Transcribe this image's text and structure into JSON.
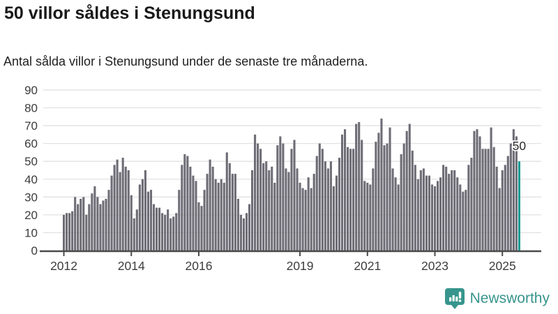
{
  "header": {
    "title": "50 villor såldes i Stenungsund",
    "subtitle": "Antal sålda villor i Stenungsund under de senaste tre månaderna."
  },
  "footer": {
    "brand": "Newsworthy",
    "logo_icon": "newsworthy-speech-bubble-chart-icon"
  },
  "colors": {
    "bar": "#6e6d76",
    "highlight": "#1d9b95",
    "brand_teal": "#37958d",
    "grid": "#e2e2e2",
    "axis": "#4a4a4a",
    "tick_text": "#3d3d3d",
    "annotation_text": "#2b2b2b"
  },
  "chart_data": {
    "type": "bar",
    "title": "50 villor såldes i Stenungsund",
    "subtitle": "Antal sålda villor i Stenungsund under de senaste tre månaderna.",
    "unit": "antal sålda villor (rullande tre månader)",
    "frequency": "monthly",
    "start": "2012-01",
    "end": "2025-07",
    "ylim": [
      0,
      90
    ],
    "y_ticks": [
      0,
      10,
      20,
      30,
      40,
      50,
      60,
      70,
      80,
      90
    ],
    "x_tick_years": [
      2012,
      2014,
      2016,
      2019,
      2021,
      2023,
      2025
    ],
    "grid": "horizontal",
    "legend": "none",
    "highlight_last": true,
    "last_value_label": "50",
    "values": [
      20,
      21,
      21,
      22,
      30,
      26,
      29,
      30,
      20,
      26,
      32,
      36,
      30,
      26,
      28,
      29,
      34,
      42,
      48,
      51,
      44,
      52,
      47,
      45,
      31,
      18,
      23,
      37,
      40,
      45,
      33,
      34,
      26,
      24,
      24,
      21,
      20,
      23,
      18,
      19,
      21,
      34,
      48,
      54,
      53,
      47,
      42,
      39,
      27,
      25,
      34,
      43,
      51,
      47,
      40,
      38,
      40,
      38,
      55,
      49,
      43,
      43,
      29,
      20,
      18,
      21,
      26,
      45,
      65,
      60,
      57,
      49,
      50,
      45,
      47,
      38,
      59,
      64,
      60,
      46,
      44,
      57,
      62,
      46,
      38,
      35,
      34,
      41,
      35,
      43,
      53,
      60,
      57,
      50,
      46,
      50,
      36,
      42,
      52,
      65,
      68,
      58,
      57,
      57,
      71,
      72,
      62,
      39,
      38,
      37,
      46,
      61,
      66,
      74,
      59,
      60,
      69,
      46,
      41,
      37,
      54,
      60,
      67,
      71,
      56,
      48,
      40,
      45,
      46,
      42,
      42,
      37,
      36,
      39,
      41,
      48,
      47,
      43,
      45,
      45,
      41,
      37,
      33,
      34,
      48,
      52,
      67,
      68,
      64,
      57,
      57,
      57,
      69,
      58,
      47,
      35,
      45,
      48,
      53,
      60,
      68,
      64,
      50
    ]
  }
}
